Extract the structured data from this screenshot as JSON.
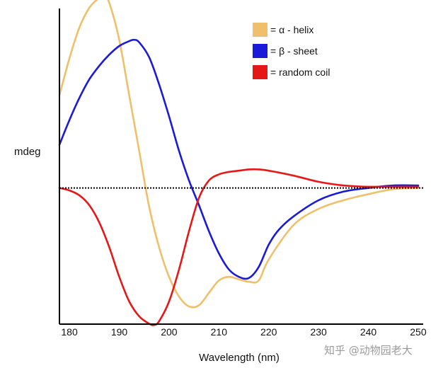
{
  "chart_data": {
    "type": "line",
    "title": "",
    "xlabel": "Wavelength (nm)",
    "ylabel": "mdeg",
    "xlim": [
      178,
      251
    ],
    "ylim": [
      -1.0,
      1.5
    ],
    "xticks": [
      180,
      190,
      200,
      210,
      220,
      230,
      240,
      250
    ],
    "baseline": 0,
    "grid": false,
    "legend_position": "top-right",
    "series": [
      {
        "name": "= α - helix",
        "color": "#f0bf6b",
        "x": [
          178,
          180,
          182,
          184,
          186,
          187,
          188,
          190,
          192,
          194,
          196,
          198,
          200,
          202,
          204,
          206,
          208,
          210,
          212,
          214,
          216,
          218,
          220,
          225,
          230,
          235,
          240,
          245,
          250
        ],
        "y": [
          0.75,
          1.05,
          1.3,
          1.46,
          1.54,
          1.55,
          1.5,
          1.2,
          0.75,
          0.3,
          -0.15,
          -0.48,
          -0.72,
          -0.88,
          -0.96,
          -0.95,
          -0.85,
          -0.75,
          -0.72,
          -0.74,
          -0.76,
          -0.75,
          -0.58,
          -0.3,
          -0.17,
          -0.1,
          -0.05,
          -0.01,
          0.0
        ]
      },
      {
        "name": "= β - sheet",
        "color": "#1a1ad8",
        "x": [
          178,
          180,
          182,
          184,
          186,
          188,
          190,
          192,
          193,
          194,
          196,
          198,
          200,
          202,
          204,
          206,
          208,
          210,
          212,
          214,
          216,
          218,
          220,
          222,
          225,
          230,
          235,
          240,
          245,
          250
        ],
        "y": [
          0.35,
          0.55,
          0.73,
          0.88,
          0.99,
          1.08,
          1.15,
          1.19,
          1.2,
          1.18,
          1.06,
          0.84,
          0.58,
          0.3,
          0.06,
          -0.14,
          -0.35,
          -0.53,
          -0.66,
          -0.72,
          -0.73,
          -0.64,
          -0.46,
          -0.34,
          -0.23,
          -0.1,
          -0.03,
          0.0,
          0.02,
          0.02
        ]
      },
      {
        "name": "= random coil",
        "color": "#e51818",
        "x": [
          178,
          180,
          182,
          184,
          186,
          188,
          190,
          192,
          194,
          196,
          197,
          198,
          200,
          202,
          204,
          206,
          208,
          210,
          212,
          214,
          216,
          218,
          220,
          225,
          230,
          235,
          240,
          245,
          250
        ],
        "y": [
          0.0,
          -0.02,
          -0.06,
          -0.14,
          -0.28,
          -0.48,
          -0.72,
          -0.92,
          -1.04,
          -1.1,
          -1.11,
          -1.08,
          -0.92,
          -0.66,
          -0.35,
          -0.08,
          0.06,
          0.11,
          0.13,
          0.14,
          0.15,
          0.15,
          0.14,
          0.1,
          0.05,
          0.02,
          0.01,
          0.01,
          0.01
        ]
      }
    ]
  },
  "watermark": "知乎 @动物园老大"
}
